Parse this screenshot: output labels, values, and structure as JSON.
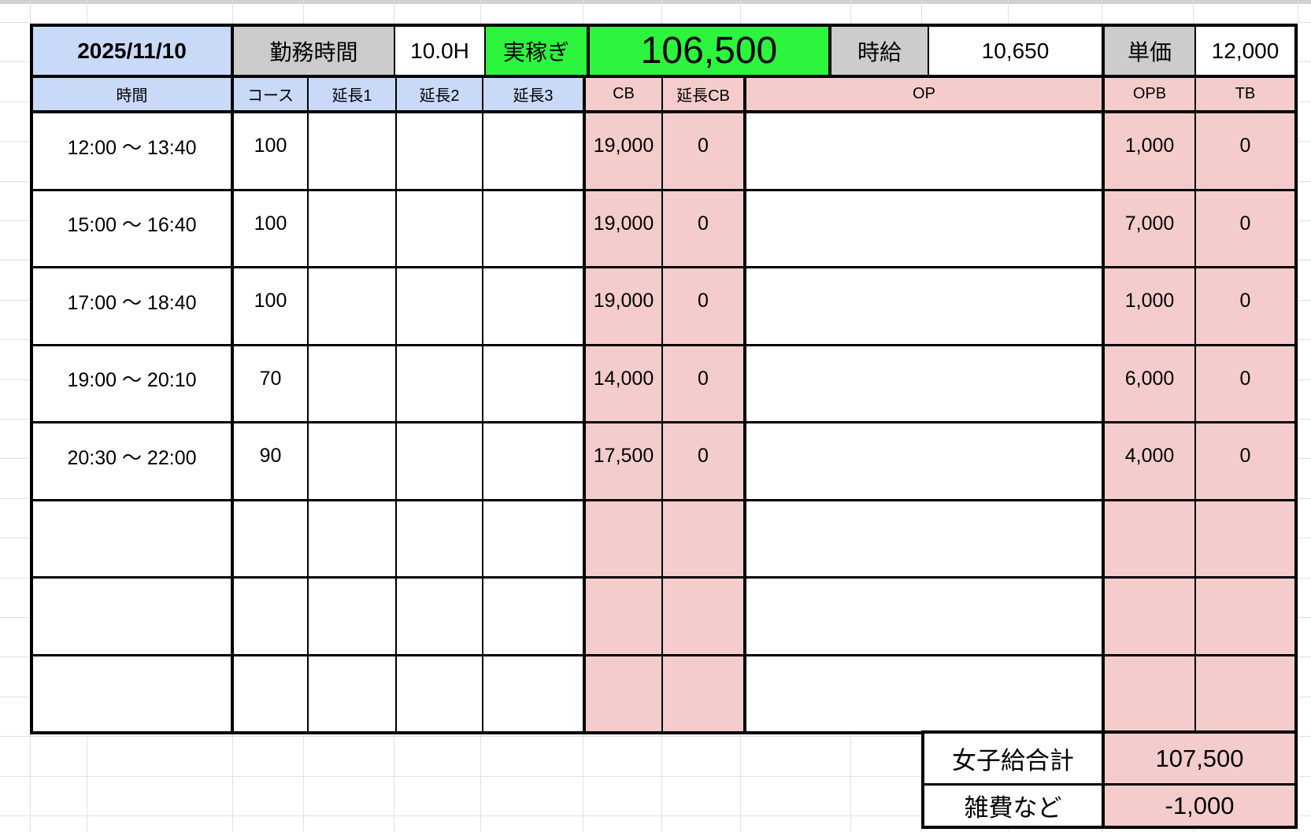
{
  "top": {
    "date": "2025/11/10",
    "work_time_label": "勤務時間",
    "work_time_value": "10.0H",
    "net_earnings_label": "実稼ぎ",
    "net_earnings_value": "106,500",
    "hourly_wage_label": "時給",
    "hourly_wage_value": "10,650",
    "unit_price_label": "単価",
    "unit_price_value": "12,000"
  },
  "columns": {
    "time": "時間",
    "course": "コース",
    "ext1": "延長1",
    "ext2": "延長2",
    "ext3": "延長3",
    "cb": "CB",
    "ext_cb": "延長CB",
    "op": "OP",
    "opb": "OPB",
    "tb": "TB"
  },
  "rows": [
    {
      "time": "12:00 〜 13:40",
      "course": "100",
      "ext1": "",
      "ext2": "",
      "ext3": "",
      "cb": "19,000",
      "ext_cb": "0",
      "op": "",
      "opb": "1,000",
      "tb": "0"
    },
    {
      "time": "15:00 〜 16:40",
      "course": "100",
      "ext1": "",
      "ext2": "",
      "ext3": "",
      "cb": "19,000",
      "ext_cb": "0",
      "op": "",
      "opb": "7,000",
      "tb": "0"
    },
    {
      "time": "17:00 〜 18:40",
      "course": "100",
      "ext1": "",
      "ext2": "",
      "ext3": "",
      "cb": "19,000",
      "ext_cb": "0",
      "op": "",
      "opb": "1,000",
      "tb": "0"
    },
    {
      "time": "19:00 〜 20:10",
      "course": "70",
      "ext1": "",
      "ext2": "",
      "ext3": "",
      "cb": "14,000",
      "ext_cb": "0",
      "op": "",
      "opb": "6,000",
      "tb": "0"
    },
    {
      "time": "20:30 〜 22:00",
      "course": "90",
      "ext1": "",
      "ext2": "",
      "ext3": "",
      "cb": "17,500",
      "ext_cb": "0",
      "op": "",
      "opb": "4,000",
      "tb": "0"
    },
    {
      "time": "",
      "course": "",
      "ext1": "",
      "ext2": "",
      "ext3": "",
      "cb": "",
      "ext_cb": "",
      "op": "",
      "opb": "",
      "tb": ""
    },
    {
      "time": "",
      "course": "",
      "ext1": "",
      "ext2": "",
      "ext3": "",
      "cb": "",
      "ext_cb": "",
      "op": "",
      "opb": "",
      "tb": ""
    },
    {
      "time": "",
      "course": "",
      "ext1": "",
      "ext2": "",
      "ext3": "",
      "cb": "",
      "ext_cb": "",
      "op": "",
      "opb": "",
      "tb": ""
    }
  ],
  "summary": {
    "total_label": "女子給合計",
    "total_value": "107,500",
    "misc_label": "雑費など",
    "misc_value": "-1,000"
  },
  "colors": {
    "blue": "#c9daf8",
    "gray": "#cccccc",
    "green": "#2df53d",
    "pink": "#f4cccc",
    "gridline": "#e1e1e1",
    "topband": "#d0d0d0"
  }
}
